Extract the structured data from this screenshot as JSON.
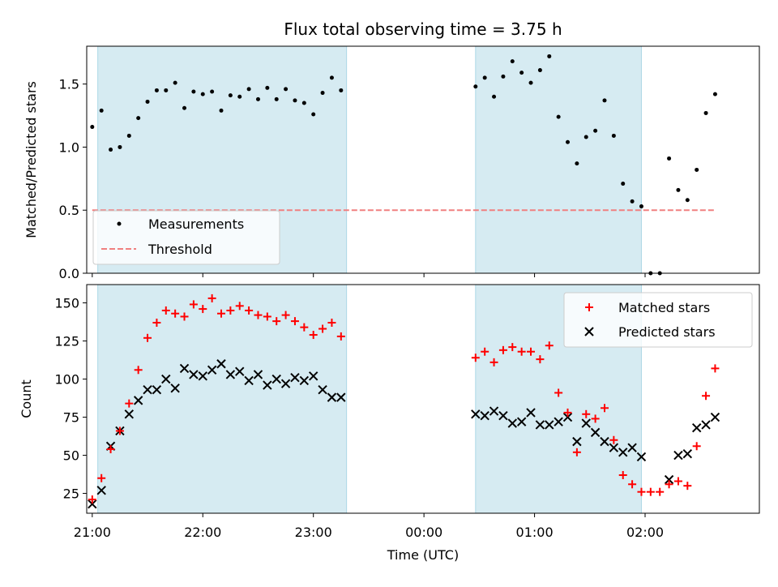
{
  "chart_data": [
    {
      "type": "scatter",
      "title": "Flux total observing time = 3.75 h",
      "xlabel": "",
      "ylabel": "Matched/Predicted stars",
      "xlim": [
        "20:57",
        "03:02"
      ],
      "ylim": [
        0,
        1.8
      ],
      "yticks": [
        0.0,
        0.5,
        1.0,
        1.5
      ],
      "yticklabels": [
        "0.0",
        "0.5",
        "1.0",
        "1.5"
      ],
      "legend_position": "lower-left",
      "shaded_intervals": [
        [
          "21:03",
          "23:18"
        ],
        [
          "00:28",
          "01:58"
        ]
      ],
      "shade_color": "#add8e6",
      "series": [
        {
          "name": "Measurements",
          "marker": "dot",
          "color": "#000000",
          "x": [
            "21:00",
            "21:05",
            "21:10",
            "21:15",
            "21:20",
            "21:25",
            "21:30",
            "21:35",
            "21:40",
            "21:45",
            "21:50",
            "21:55",
            "22:00",
            "22:05",
            "22:10",
            "22:15",
            "22:20",
            "22:25",
            "22:30",
            "22:35",
            "22:40",
            "22:45",
            "22:50",
            "22:55",
            "23:00",
            "23:05",
            "23:10",
            "23:15",
            "00:28",
            "00:33",
            "00:38",
            "00:43",
            "00:48",
            "00:53",
            "00:58",
            "01:03",
            "01:08",
            "01:13",
            "01:18",
            "01:23",
            "01:28",
            "01:33",
            "01:38",
            "01:43",
            "01:48",
            "01:53",
            "01:58",
            "02:03",
            "02:08",
            "02:13",
            "02:18",
            "02:23",
            "02:28",
            "02:33",
            "02:38"
          ],
          "y": [
            1.16,
            1.29,
            0.98,
            1.0,
            1.09,
            1.23,
            1.36,
            1.45,
            1.45,
            1.51,
            1.31,
            1.44,
            1.42,
            1.44,
            1.29,
            1.41,
            1.4,
            1.46,
            1.38,
            1.47,
            1.38,
            1.46,
            1.37,
            1.35,
            1.26,
            1.43,
            1.55,
            1.45,
            1.48,
            1.55,
            1.4,
            1.56,
            1.68,
            1.59,
            1.51,
            1.61,
            1.72,
            1.24,
            1.04,
            0.87,
            1.08,
            1.13,
            1.37,
            1.09,
            0.71,
            0.57,
            0.53,
            0.0,
            0.0,
            0.91,
            0.66,
            0.58,
            0.82,
            1.27,
            1.42
          ]
        },
        {
          "name": "Threshold",
          "style": "dashed",
          "color": "#f08080",
          "x": [
            "21:00",
            "02:38"
          ],
          "y": [
            0.5,
            0.5
          ]
        }
      ]
    },
    {
      "type": "scatter",
      "title": "",
      "xlabel": "Time (UTC)",
      "ylabel": "Count",
      "xlim": [
        "20:57",
        "03:02"
      ],
      "ylim": [
        12,
        162
      ],
      "xticks": [
        "21:00",
        "22:00",
        "23:00",
        "00:00",
        "01:00",
        "02:00"
      ],
      "xticklabels": [
        "21:00",
        "22:00",
        "23:00",
        "00:00",
        "01:00",
        "02:00"
      ],
      "yticks": [
        25,
        50,
        75,
        100,
        125,
        150
      ],
      "yticklabels": [
        "25",
        "50",
        "75",
        "100",
        "125",
        "150"
      ],
      "legend_position": "upper-right",
      "shaded_intervals": [
        [
          "21:03",
          "23:18"
        ],
        [
          "00:28",
          "01:58"
        ]
      ],
      "shade_color": "#add8e6",
      "series": [
        {
          "name": "Matched stars",
          "marker": "plus",
          "color": "#ff0000",
          "x": [
            "21:00",
            "21:05",
            "21:10",
            "21:15",
            "21:20",
            "21:25",
            "21:30",
            "21:35",
            "21:40",
            "21:45",
            "21:50",
            "21:55",
            "22:00",
            "22:05",
            "22:10",
            "22:15",
            "22:20",
            "22:25",
            "22:30",
            "22:35",
            "22:40",
            "22:45",
            "22:50",
            "22:55",
            "23:00",
            "23:05",
            "23:10",
            "23:15",
            "00:28",
            "00:33",
            "00:38",
            "00:43",
            "00:48",
            "00:53",
            "00:58",
            "01:03",
            "01:08",
            "01:13",
            "01:18",
            "01:23",
            "01:28",
            "01:33",
            "01:38",
            "01:43",
            "01:48",
            "01:53",
            "01:58",
            "02:03",
            "02:08",
            "02:13",
            "02:18",
            "02:23",
            "02:28",
            "02:33",
            "02:38"
          ],
          "y": [
            21,
            35,
            54,
            66,
            84,
            106,
            127,
            137,
            145,
            143,
            141,
            149,
            146,
            153,
            143,
            145,
            148,
            145,
            142,
            141,
            138,
            142,
            138,
            134,
            129,
            133,
            137,
            128,
            114,
            118,
            111,
            119,
            121,
            118,
            118,
            113,
            122,
            91,
            78,
            52,
            77,
            74,
            81,
            60,
            37,
            31,
            26,
            26,
            26,
            31,
            33,
            30,
            56,
            89,
            107
          ]
        },
        {
          "name": "Predicted stars",
          "marker": "x",
          "color": "#000000",
          "x": [
            "21:00",
            "21:05",
            "21:10",
            "21:15",
            "21:20",
            "21:25",
            "21:30",
            "21:35",
            "21:40",
            "21:45",
            "21:50",
            "21:55",
            "22:00",
            "22:05",
            "22:10",
            "22:15",
            "22:20",
            "22:25",
            "22:30",
            "22:35",
            "22:40",
            "22:45",
            "22:50",
            "22:55",
            "23:00",
            "23:05",
            "23:10",
            "23:15",
            "00:28",
            "00:33",
            "00:38",
            "00:43",
            "00:48",
            "00:53",
            "00:58",
            "01:03",
            "01:08",
            "01:13",
            "01:18",
            "01:23",
            "01:28",
            "01:33",
            "01:38",
            "01:43",
            "01:48",
            "01:53",
            "01:58",
            "02:13",
            "02:18",
            "02:23",
            "02:28",
            "02:33",
            "02:38"
          ],
          "y": [
            18,
            27,
            56,
            66,
            77,
            86,
            93,
            93,
            100,
            94,
            107,
            103,
            102,
            106,
            110,
            103,
            105,
            99,
            103,
            96,
            100,
            97,
            101,
            99,
            102,
            93,
            88,
            88,
            77,
            76,
            79,
            76,
            71,
            72,
            78,
            70,
            70,
            72,
            75,
            59,
            71,
            65,
            59,
            55,
            52,
            55,
            49,
            34,
            50,
            51,
            68,
            70,
            75
          ]
        }
      ]
    }
  ]
}
